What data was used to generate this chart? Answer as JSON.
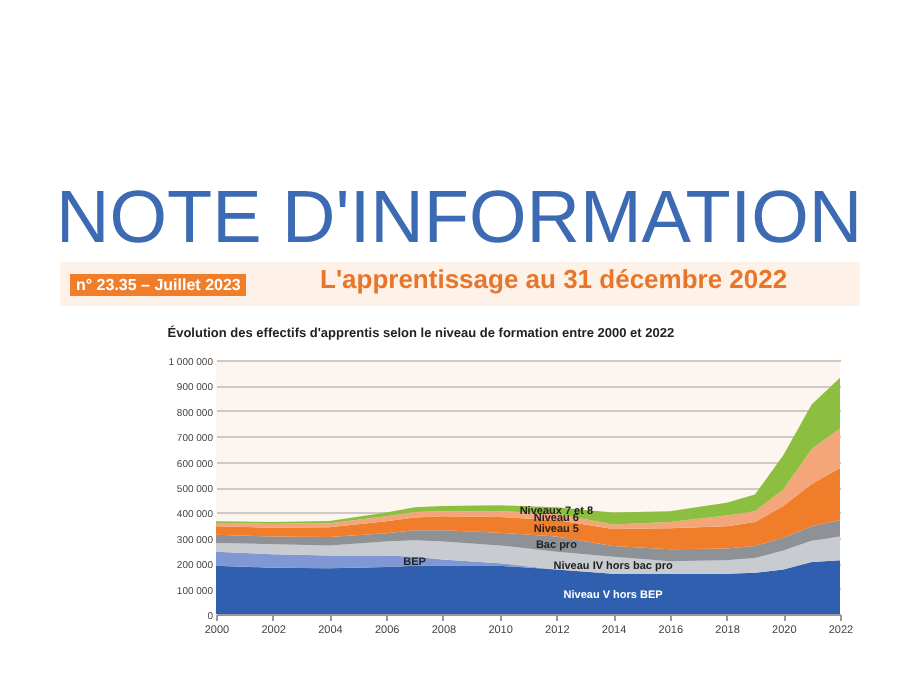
{
  "chart_data": {
    "type": "area",
    "stacked": true,
    "title": "Évolution des effectifs d'apprentis selon le niveau de formation entre 2000 et 2022",
    "annotations": [
      "NOTE D'INFORMATION",
      "n° 23.35 – Juillet 2023",
      "L'apprentissage au 31 décembre 2022"
    ],
    "x": [
      2000,
      2002,
      2004,
      2006,
      2007,
      2008,
      2010,
      2012,
      2014,
      2016,
      2018,
      2019,
      2020,
      2021,
      2022
    ],
    "series": [
      {
        "name": "Niveau V hors BEP",
        "color": "#2f5fae",
        "values": [
          190000,
          182000,
          180000,
          185000,
          190000,
          190000,
          190000,
          175000,
          158000,
          158000,
          158000,
          162000,
          175000,
          205000,
          212000
        ]
      },
      {
        "name": "BEP",
        "color": "#7f97d3",
        "values": [
          55000,
          53000,
          50000,
          45000,
          35000,
          25000,
          10000,
          0,
          0,
          0,
          0,
          0,
          0,
          0,
          0
        ]
      },
      {
        "name": "Niveau IV hors bac pro",
        "color": "#c8cbd0",
        "values": [
          35000,
          40000,
          40000,
          55000,
          65000,
          70000,
          70000,
          70000,
          67000,
          50000,
          54000,
          58000,
          75000,
          83000,
          93000
        ]
      },
      {
        "name": "Bac pro",
        "color": "#8e9196",
        "values": [
          32000,
          30000,
          33000,
          33000,
          40000,
          45000,
          50000,
          60000,
          43000,
          47000,
          46000,
          48000,
          50000,
          57000,
          65000
        ]
      },
      {
        "name": "Niveau 5",
        "color": "#f07d2a",
        "values": [
          33000,
          35000,
          39000,
          47000,
          50000,
          55000,
          62000,
          65000,
          67000,
          83000,
          87000,
          94000,
          125000,
          167000,
          205000
        ]
      },
      {
        "name": "Niveau 6",
        "color": "#f4a57a",
        "values": [
          13000,
          15000,
          15000,
          20000,
          22000,
          20000,
          23000,
          25000,
          17000,
          24000,
          43000,
          43000,
          65000,
          138000,
          155000
        ]
      },
      {
        "name": "Niveaux 7 et 8",
        "color": "#8cbf3f",
        "values": [
          7000,
          7000,
          9000,
          15000,
          18000,
          20000,
          23000,
          25000,
          48000,
          43000,
          50000,
          65000,
          135000,
          175000,
          200000
        ]
      }
    ],
    "xlim": [
      2000,
      2022
    ],
    "xticks": [
      2000,
      2002,
      2004,
      2006,
      2008,
      2010,
      2012,
      2014,
      2016,
      2018,
      2020,
      2022
    ],
    "ylim": [
      0,
      1000000
    ],
    "yticks": [
      {
        "value": 0,
        "label": "0"
      },
      {
        "value": 100000,
        "label": "100 000"
      },
      {
        "value": 200000,
        "label": "200 000"
      },
      {
        "value": 300000,
        "label": "300 000"
      },
      {
        "value": 400000,
        "label": "400 000"
      },
      {
        "value": 500000,
        "label": "500 000"
      },
      {
        "value": 600000,
        "label": "600 000"
      },
      {
        "value": 700000,
        "label": "700 000"
      },
      {
        "value": 800000,
        "label": "800 000"
      },
      {
        "value": 900000,
        "label": "900 000"
      },
      {
        "value": 1000000,
        "label": "1 000 000"
      }
    ],
    "grid": "y",
    "legend": false
  }
}
